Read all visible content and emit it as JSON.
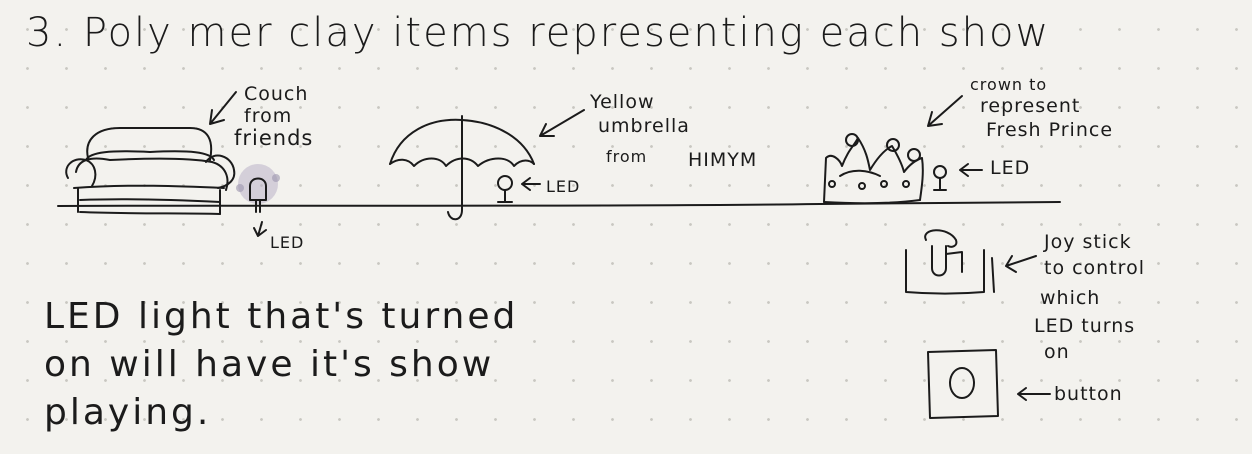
{
  "title": "3. Poly mer  clay  items  representing  each show",
  "annotations": {
    "couch": [
      "Couch",
      "from",
      "friends"
    ],
    "umbrella": [
      "Yellow",
      "umbrella",
      "from",
      "HIMYM"
    ],
    "crown": [
      "crown to",
      "represent",
      "Fresh Prince"
    ],
    "led_couch": "LED",
    "led_umbrella": "LED",
    "led_crown": "LED",
    "joystick": [
      "Joy stick",
      "to control",
      "which",
      "LED turns",
      "on"
    ],
    "button_label": "button",
    "button_symbol": "O"
  },
  "description": [
    "LED  light  that's  turned",
    "on   will   have  it's  show",
    "playing."
  ],
  "colors": {
    "ink": "#1b1b1b",
    "paper": "#f3f2ee",
    "dot": "#c9c7c1",
    "led_glow": "#b9b3c9"
  },
  "icons": [
    "couch-drawing",
    "umbrella-drawing",
    "crown-drawing",
    "led-drawing",
    "joystick-drawing",
    "button-drawing",
    "arrow-icon"
  ]
}
